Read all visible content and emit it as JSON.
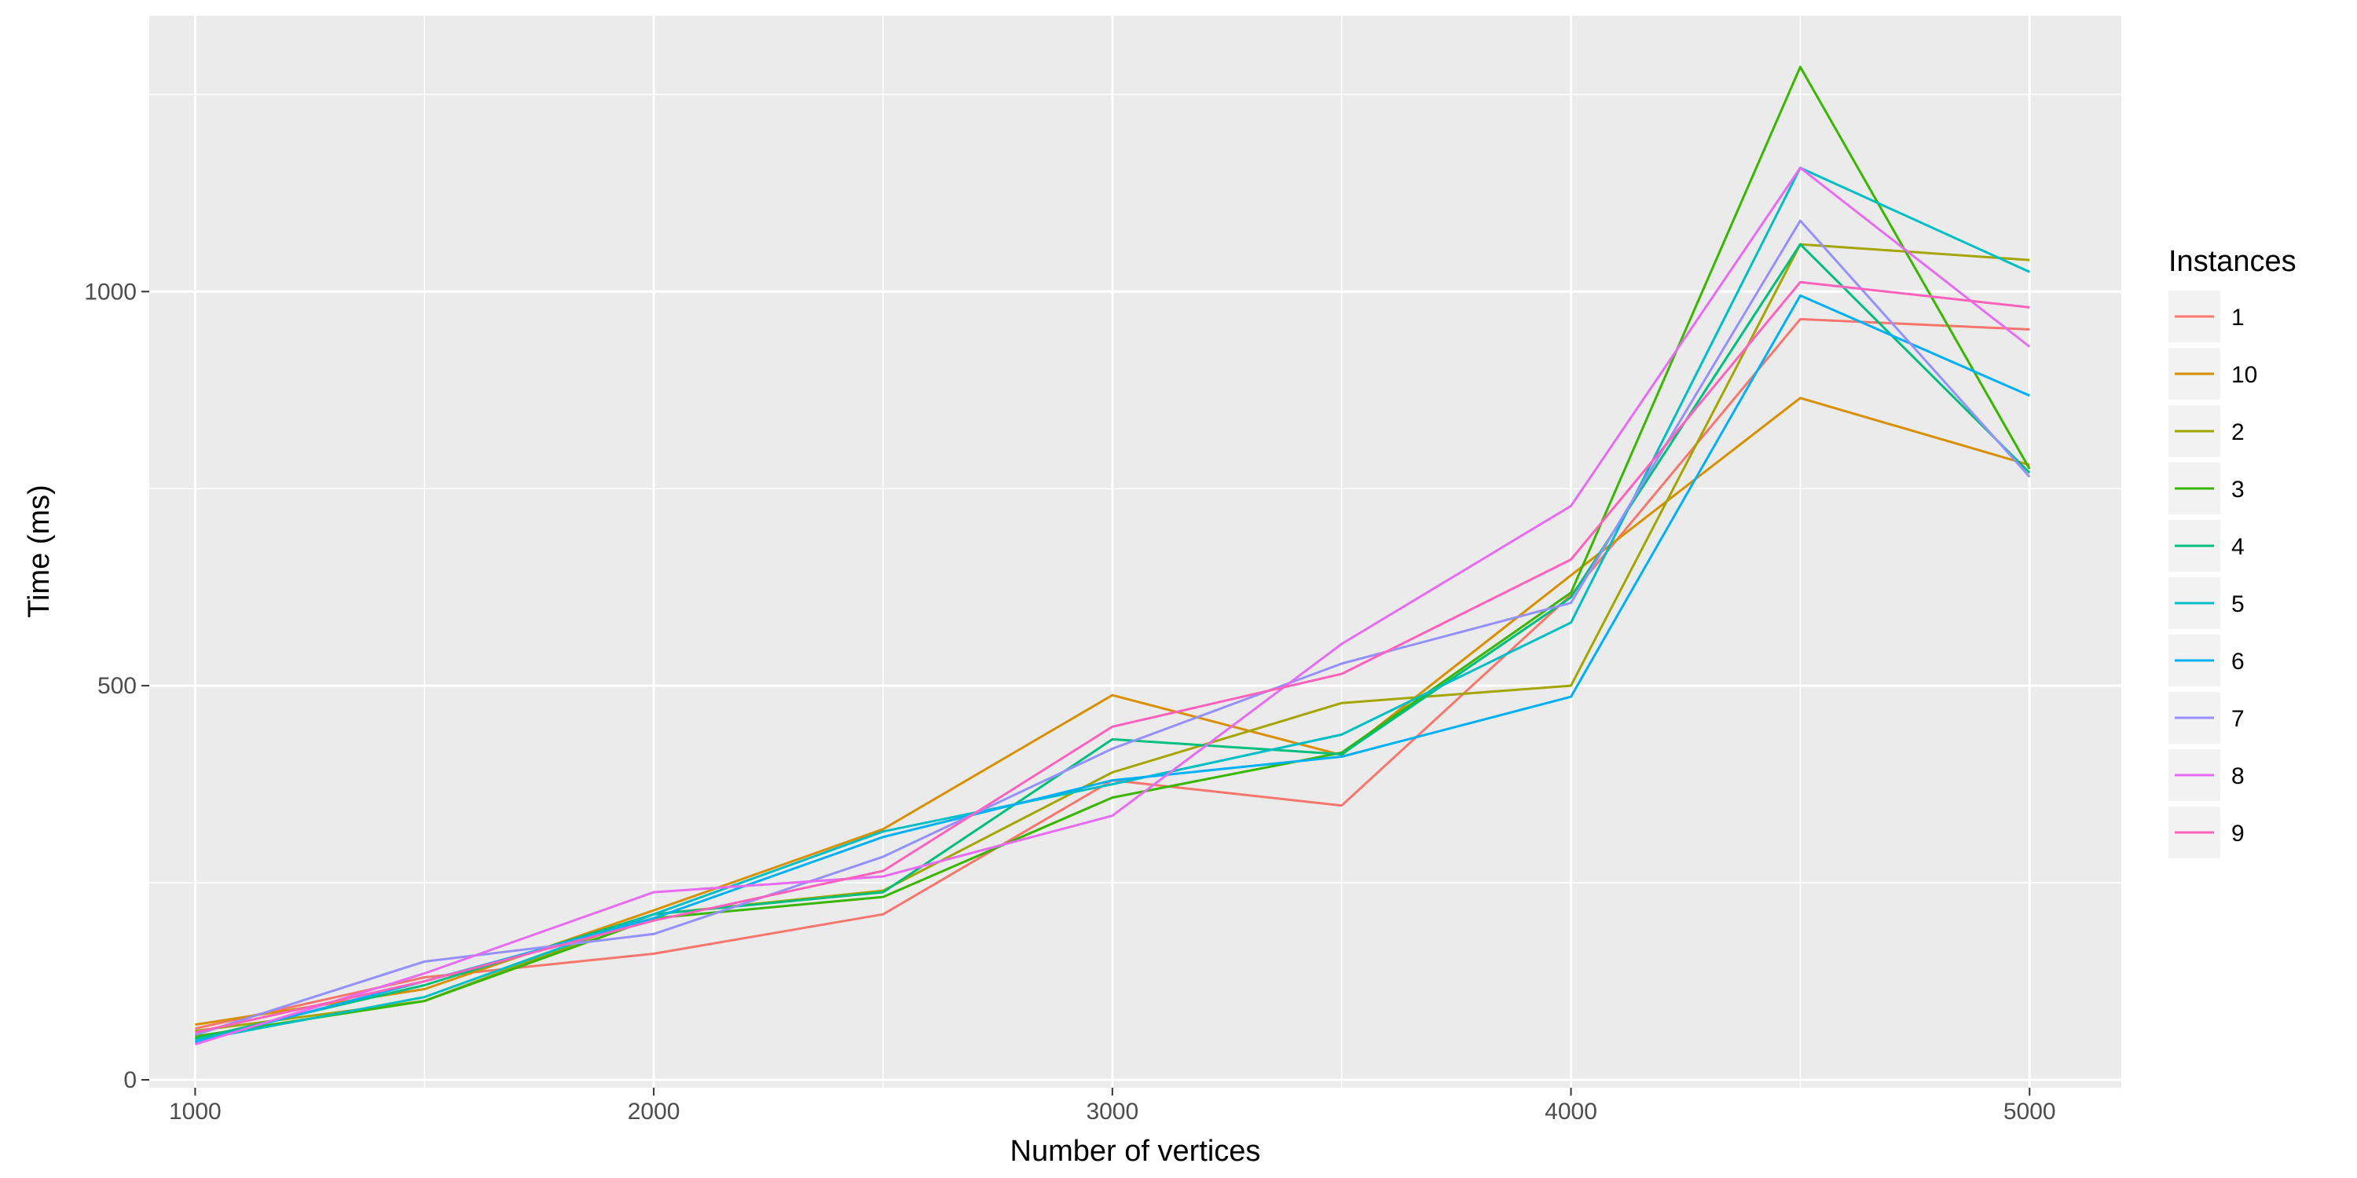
{
  "chart_data": {
    "type": "line",
    "title": "",
    "xlabel": "Number of vertices",
    "ylabel": "Time (ms)",
    "xlim": [
      900,
      5200
    ],
    "ylim": [
      -10,
      1350
    ],
    "x_ticks": [
      1000,
      2000,
      3000,
      4000,
      5000
    ],
    "x_tick_labels": [
      "1000",
      "2000",
      "3000",
      "4000",
      "5000"
    ],
    "y_ticks": [
      0,
      500,
      1000
    ],
    "y_tick_labels": [
      "0",
      "500",
      "1000"
    ],
    "grid": true,
    "legend": {
      "title": "Instances",
      "placement": "right"
    },
    "x": [
      1000,
      1500,
      2000,
      2500,
      3000,
      3500,
      4000,
      4500,
      5000
    ],
    "series": [
      {
        "name": "1",
        "color": "#F8766D",
        "values": [
          65,
          130,
          160,
          210,
          380,
          348,
          615,
          965,
          952
        ]
      },
      {
        "name": "10",
        "color": "#D89000",
        "values": [
          70,
          115,
          215,
          318,
          488,
          412,
          640,
          865,
          780
        ]
      },
      {
        "name": "2",
        "color": "#A3A500",
        "values": [
          62,
          100,
          210,
          240,
          390,
          478,
          500,
          1060,
          1040
        ]
      },
      {
        "name": "3",
        "color": "#39B600",
        "values": [
          55,
          100,
          205,
          232,
          358,
          415,
          618,
          1285,
          775
        ]
      },
      {
        "name": "4",
        "color": "#00BF7D",
        "values": [
          52,
          120,
          210,
          238,
          432,
          413,
          612,
          1060,
          770
        ]
      },
      {
        "name": "5",
        "color": "#00BFC4",
        "values": [
          50,
          105,
          210,
          315,
          375,
          438,
          580,
          1157,
          1025
        ]
      },
      {
        "name": "6",
        "color": "#00B0F6",
        "values": [
          48,
          125,
          205,
          308,
          380,
          410,
          486,
          995,
          868
        ]
      },
      {
        "name": "7",
        "color": "#9590FF",
        "values": [
          57,
          150,
          185,
          283,
          420,
          528,
          605,
          1090,
          765
        ]
      },
      {
        "name": "8",
        "color": "#E76BF3",
        "values": [
          45,
          135,
          238,
          258,
          335,
          553,
          728,
          1157,
          930
        ]
      },
      {
        "name": "9",
        "color": "#FF62BC",
        "values": [
          60,
          125,
          202,
          265,
          448,
          515,
          660,
          1012,
          980
        ]
      }
    ]
  }
}
